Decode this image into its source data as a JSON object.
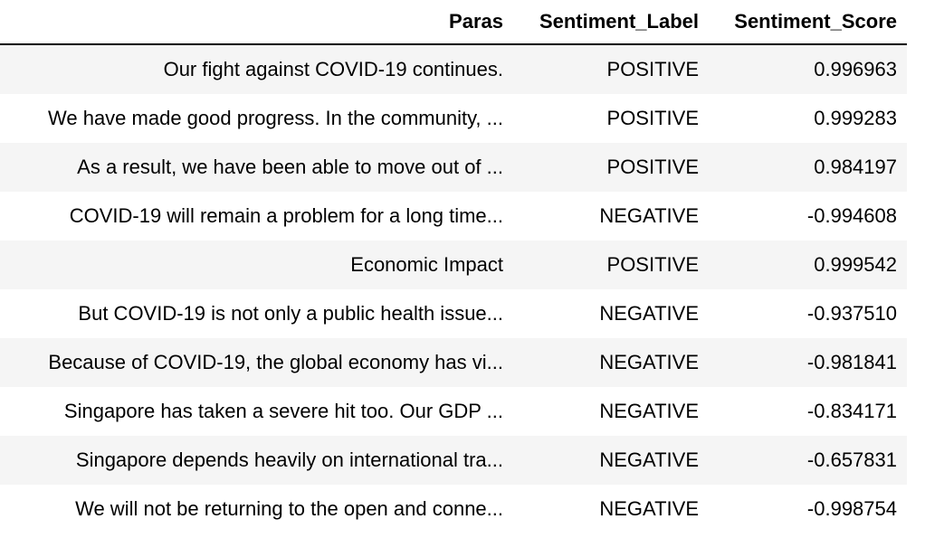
{
  "table": {
    "headers": [
      "Paras",
      "Sentiment_Label",
      "Sentiment_Score"
    ],
    "rows": [
      {
        "paras": "Our fight against COVID-19 continues.",
        "label": "POSITIVE",
        "score": "0.996963"
      },
      {
        "paras": "We have made good progress. In the community, ...",
        "label": "POSITIVE",
        "score": "0.999283"
      },
      {
        "paras": "As a result, we have been able to move out of ...",
        "label": "POSITIVE",
        "score": "0.984197"
      },
      {
        "paras": "COVID-19 will remain a problem for a long time...",
        "label": "NEGATIVE",
        "score": "-0.994608"
      },
      {
        "paras": "Economic Impact",
        "label": "POSITIVE",
        "score": "0.999542"
      },
      {
        "paras": "But COVID-19 is not only a public health issue...",
        "label": "NEGATIVE",
        "score": "-0.937510"
      },
      {
        "paras": "Because of COVID-19, the global economy has vi...",
        "label": "NEGATIVE",
        "score": "-0.981841"
      },
      {
        "paras": "Singapore has taken a severe hit too. Our GDP ...",
        "label": "NEGATIVE",
        "score": "-0.834171"
      },
      {
        "paras": "Singapore depends heavily on international tra...",
        "label": "NEGATIVE",
        "score": "-0.657831"
      },
      {
        "paras": "We will not be returning to the open and conne...",
        "label": "NEGATIVE",
        "score": "-0.998754"
      }
    ]
  }
}
